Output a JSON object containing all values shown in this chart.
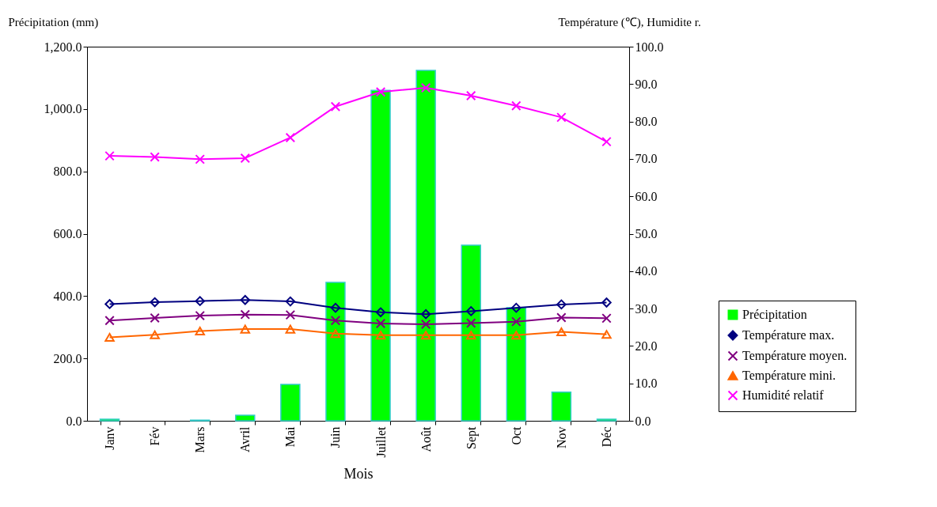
{
  "chart_data": {
    "type": "bar",
    "xlabel": "Mois",
    "ylabel": "Précipitation (mm)",
    "y2label": "Température (℃),  Humidite r.",
    "categories": [
      "Janv",
      "Fév",
      "Mars",
      "Avril",
      "Mai",
      "Juin",
      "Juillet",
      "Août",
      "Sept",
      "Oct",
      "Nov",
      "Déc"
    ],
    "series": [
      {
        "name": "Précipitation",
        "color": "#00ff00",
        "values": [
          5,
          0,
          2,
          18,
          117,
          444,
          1060,
          1124,
          563,
          363,
          92,
          5
        ]
      },
      {
        "name": "Température max.",
        "type": "line",
        "axis": "y2",
        "marker": "diamond",
        "color": "#000080",
        "values": [
          31.2,
          31.7,
          32.0,
          32.3,
          31.9,
          30.2,
          29.0,
          28.5,
          29.3,
          30.2,
          31.1,
          31.6
        ]
      },
      {
        "name": "Température moyen.",
        "type": "line",
        "axis": "y2",
        "marker": "cross",
        "color": "#800080",
        "values": [
          26.8,
          27.5,
          28.1,
          28.4,
          28.3,
          26.8,
          26.0,
          25.8,
          26.1,
          26.5,
          27.6,
          27.4
        ]
      },
      {
        "name": "Température mini.",
        "type": "line",
        "axis": "y2",
        "marker": "triangle",
        "color": "#ff6600",
        "values": [
          22.3,
          23.0,
          24.0,
          24.5,
          24.5,
          23.3,
          22.9,
          22.9,
          22.9,
          22.9,
          23.8,
          23.1
        ]
      },
      {
        "name": "Humidité relatif",
        "type": "line",
        "axis": "y2",
        "marker": "cross",
        "color": "#ff00ff",
        "values": [
          70.8,
          70.5,
          69.9,
          70.2,
          75.7,
          84.0,
          87.9,
          89.0,
          86.9,
          84.2,
          81.1,
          74.6
        ]
      }
    ],
    "ylim": [
      0,
      1200
    ],
    "yticks": [
      {
        "value": 0,
        "label": "0.0"
      },
      {
        "value": 200,
        "label": "200.0"
      },
      {
        "value": 400,
        "label": "400.0"
      },
      {
        "value": 600,
        "label": "600.0"
      },
      {
        "value": 800,
        "label": "800.0"
      },
      {
        "value": 1000,
        "label": "1,000.0"
      },
      {
        "value": 1200,
        "label": "1,200.0"
      }
    ],
    "y2lim": [
      0,
      100
    ],
    "y2ticks": [
      {
        "value": 0,
        "label": "0.0"
      },
      {
        "value": 10,
        "label": "10.0"
      },
      {
        "value": 20,
        "label": "20.0"
      },
      {
        "value": 30,
        "label": "30.0"
      },
      {
        "value": 40,
        "label": "40.0"
      },
      {
        "value": 50,
        "label": "50.0"
      },
      {
        "value": 60,
        "label": "60.0"
      },
      {
        "value": 70,
        "label": "70.0"
      },
      {
        "value": 80,
        "label": "80.0"
      },
      {
        "value": 90,
        "label": "90.0"
      },
      {
        "value": 100,
        "label": "100.0"
      }
    ],
    "grid": false,
    "legend": "right"
  }
}
